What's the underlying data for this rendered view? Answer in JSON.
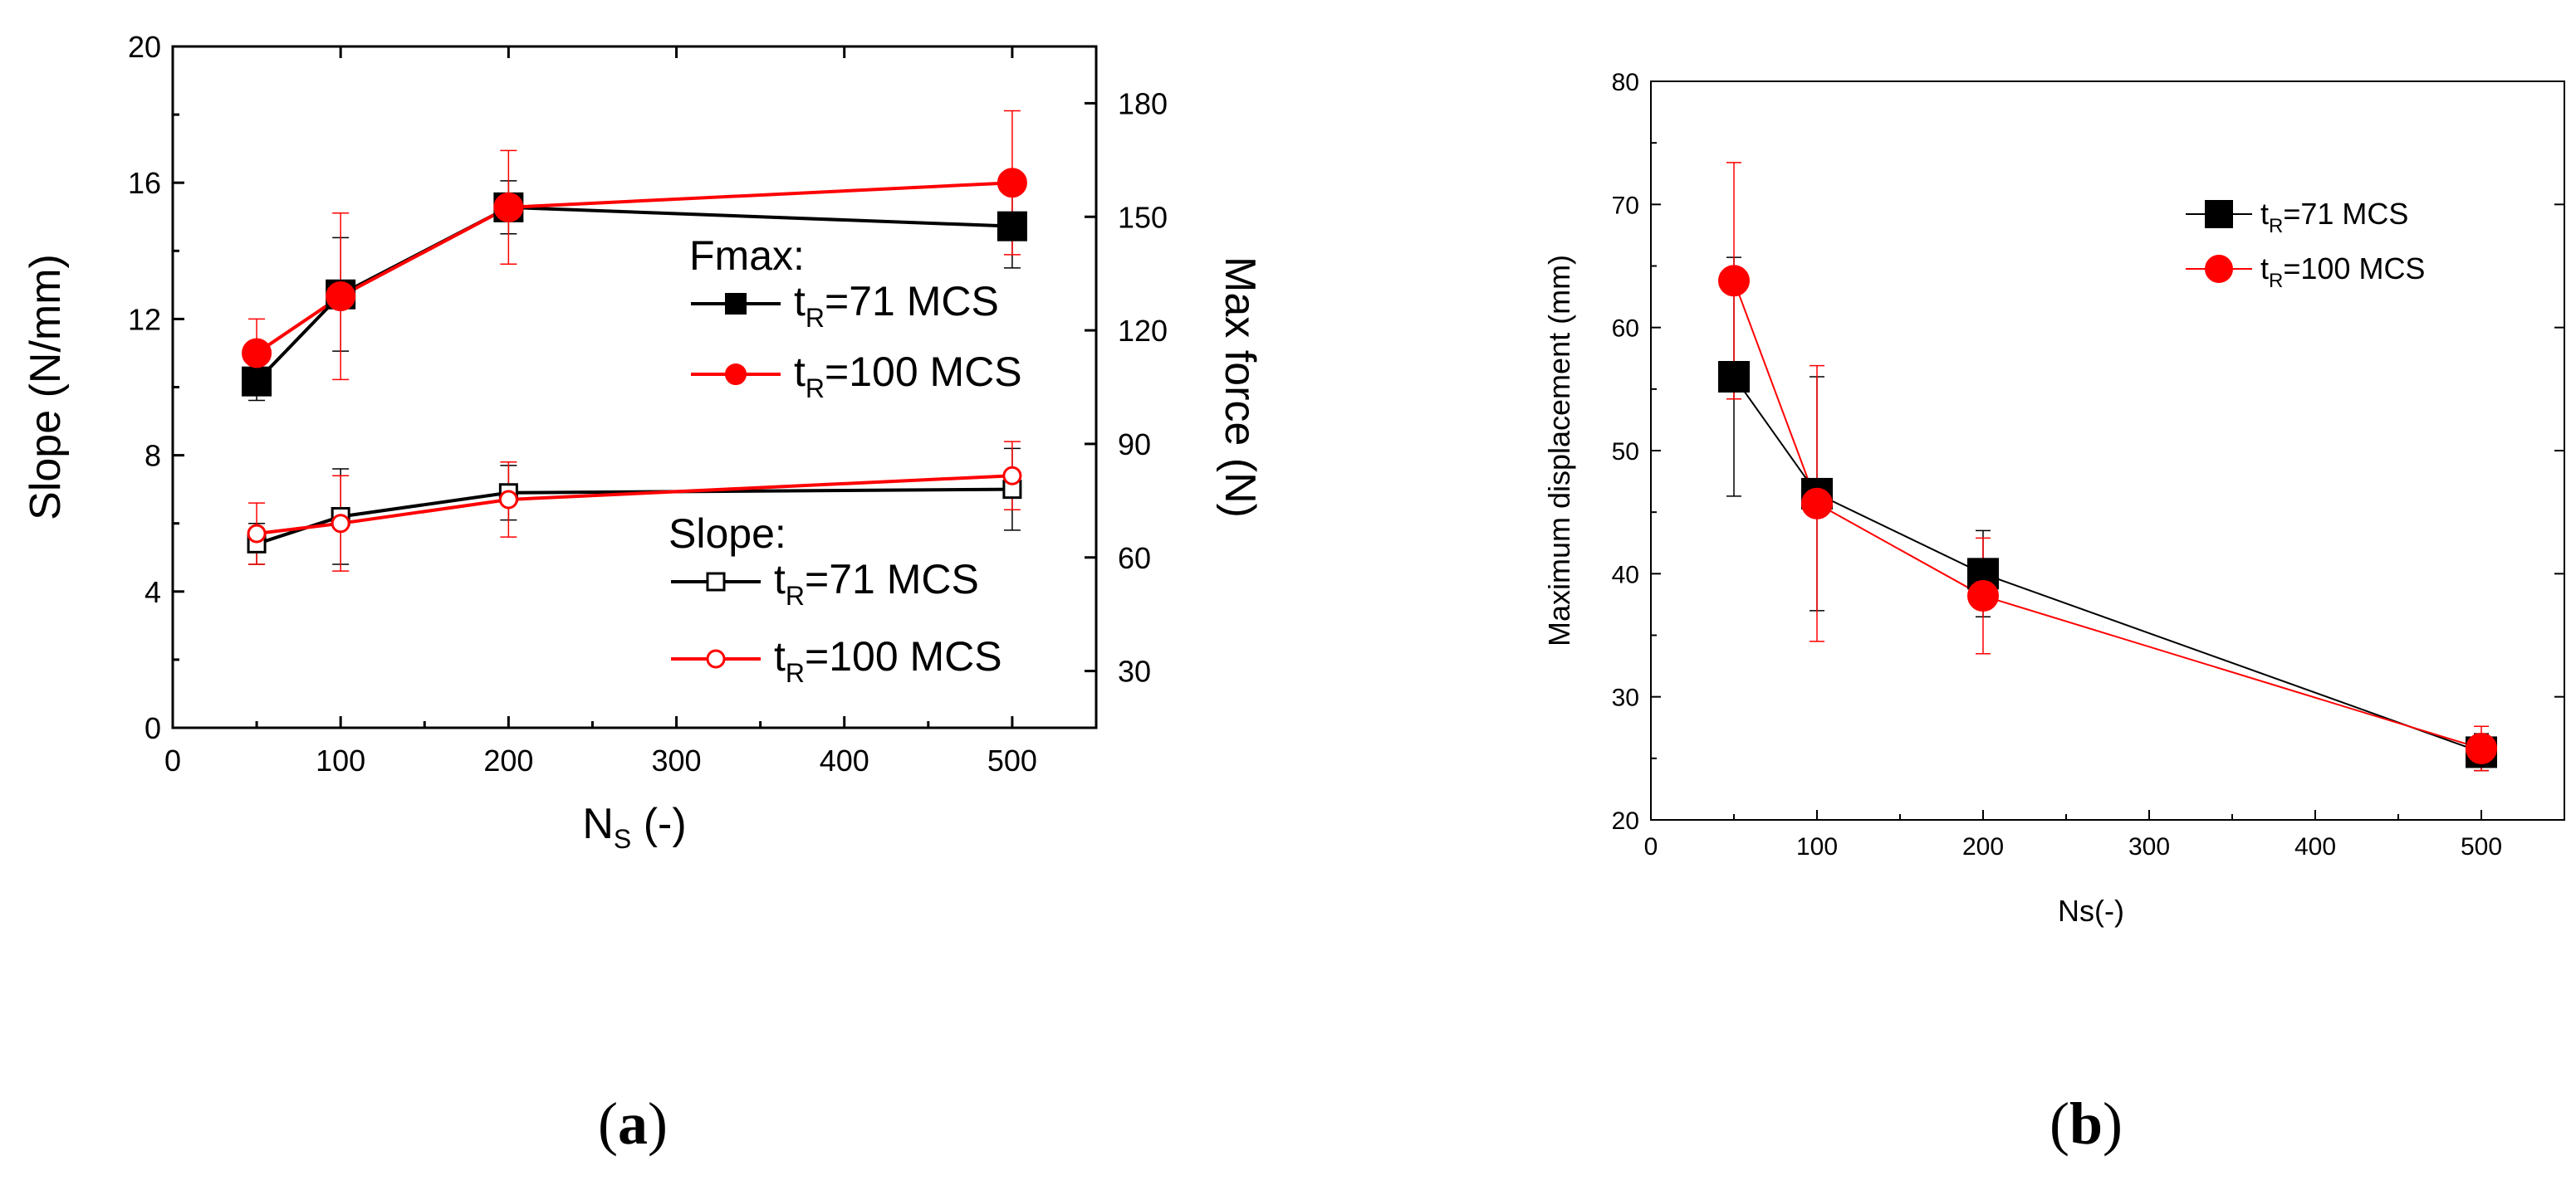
{
  "chart_data": [
    {
      "id": "a",
      "panel_label": "a",
      "type": "line",
      "xlabel_main": "N",
      "xlabel_sub": "S",
      "xlabel_tail": " (-)",
      "ylabel": "Slope (N/mm)",
      "y2label": "Max force  (N)",
      "xlim": [
        0,
        550
      ],
      "ylim": [
        0,
        20
      ],
      "y2lim": [
        15,
        195
      ],
      "xticks": [
        0,
        100,
        200,
        300,
        400,
        500
      ],
      "yticks": [
        0,
        4,
        8,
        12,
        16,
        20
      ],
      "y2ticks": [
        30,
        60,
        90,
        120,
        150,
        180
      ],
      "legend_groups": [
        {
          "title": "Fmax:",
          "entries": [
            {
              "prefix": "t",
              "sub": "R",
              "suffix": "=71 MCS",
              "color": "#000000",
              "marker": "square",
              "filled": true
            },
            {
              "prefix": "t",
              "sub": "R",
              "suffix": "=100 MCS",
              "color": "#ff0000",
              "marker": "circle",
              "filled": true
            }
          ]
        },
        {
          "title": "Slope:",
          "entries": [
            {
              "prefix": "t",
              "sub": "R",
              "suffix": "=71 MCS",
              "color": "#000000",
              "marker": "square",
              "filled": false
            },
            {
              "prefix": "t",
              "sub": "R",
              "suffix": "=100 MCS",
              "color": "#ff0000",
              "marker": "circle",
              "filled": false
            }
          ]
        }
      ],
      "series": [
        {
          "name": "Fmax t_R=71 MCS",
          "axis": "y2",
          "color": "#000000",
          "marker": "square",
          "filled": true,
          "linewidth": 4,
          "x": [
            50,
            100,
            200,
            500
          ],
          "y": [
            106.5,
            129.5,
            152.5,
            147.5
          ],
          "err": [
            5,
            15,
            7,
            11
          ]
        },
        {
          "name": "Fmax t_R=100 MCS",
          "axis": "y2",
          "color": "#ff0000",
          "marker": "circle",
          "filled": true,
          "linewidth": 4,
          "x": [
            50,
            100,
            200,
            500
          ],
          "y": [
            114,
            129,
            152.5,
            159
          ],
          "err": [
            9,
            22,
            15,
            19
          ]
        },
        {
          "name": "Slope t_R=71 MCS",
          "axis": "y",
          "color": "#000000",
          "marker": "square",
          "filled": false,
          "linewidth": 4,
          "x": [
            50,
            100,
            200,
            500
          ],
          "y": [
            5.4,
            6.2,
            6.9,
            7.0
          ],
          "err": [
            0.6,
            1.4,
            0.8,
            1.2
          ]
        },
        {
          "name": "Slope t_R=100 MCS",
          "axis": "y",
          "color": "#ff0000",
          "marker": "circle",
          "filled": false,
          "linewidth": 4,
          "x": [
            50,
            100,
            200,
            500
          ],
          "y": [
            5.7,
            6.0,
            6.7,
            7.4
          ],
          "err": [
            0.9,
            1.4,
            1.1,
            1.0
          ]
        }
      ]
    },
    {
      "id": "b",
      "panel_label": "b",
      "type": "line",
      "xlabel": "Ns(-)",
      "ylabel": "Maximum displacement (mm)",
      "xlim": [
        0,
        550
      ],
      "ylim": [
        20,
        80
      ],
      "xticks": [
        0,
        100,
        200,
        300,
        400,
        500
      ],
      "yticks": [
        20,
        30,
        40,
        50,
        60,
        70,
        80
      ],
      "legend_entries": [
        {
          "prefix": "t",
          "sub": "R",
          "suffix": "=71  MCS",
          "color": "#000000",
          "marker": "square",
          "filled": true
        },
        {
          "prefix": "t",
          "sub": "R",
          "suffix": "=100 MCS",
          "color": "#ff0000",
          "marker": "circle",
          "filled": true
        }
      ],
      "series": [
        {
          "name": "t_R=71 MCS",
          "color": "#000000",
          "marker": "square",
          "filled": true,
          "linewidth": 2,
          "x": [
            50,
            100,
            200,
            500
          ],
          "y": [
            56,
            46.5,
            40,
            25.5
          ],
          "err": [
            9.7,
            9.5,
            3.5,
            1.5
          ]
        },
        {
          "name": "t_R=100 MCS",
          "color": "#ff0000",
          "marker": "circle",
          "filled": true,
          "linewidth": 2,
          "x": [
            50,
            100,
            200,
            500
          ],
          "y": [
            63.8,
            45.7,
            38.2,
            25.8
          ],
          "err": [
            9.6,
            11.2,
            4.7,
            1.8
          ]
        }
      ]
    }
  ]
}
